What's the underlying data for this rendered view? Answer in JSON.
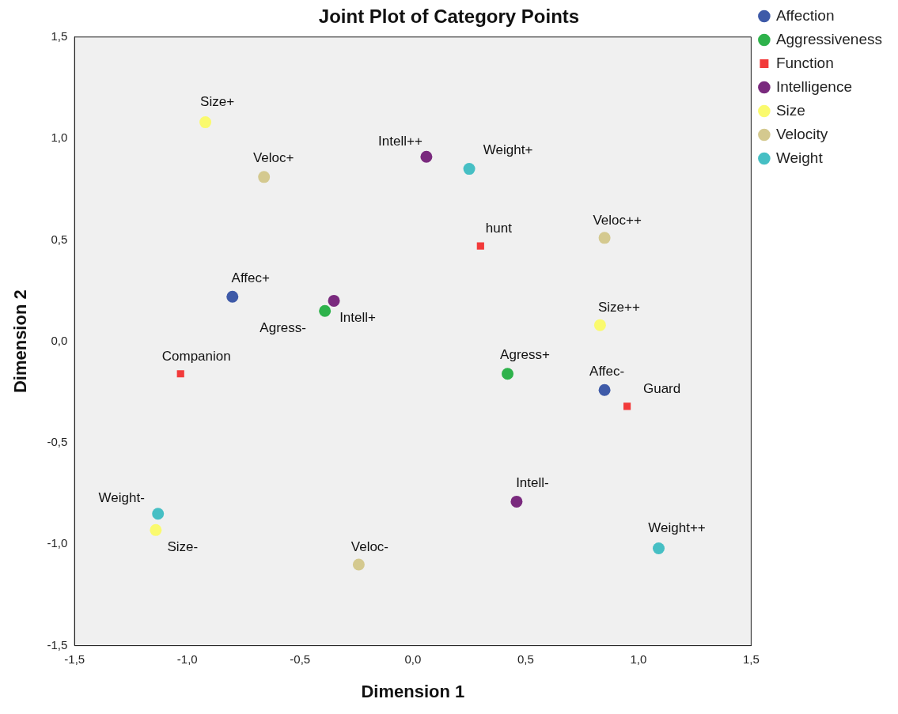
{
  "chart_data": {
    "type": "scatter",
    "title": "Joint Plot of Category Points",
    "xlabel": "Dimension 1",
    "ylabel": "Dimension 2",
    "xlim": [
      -1.5,
      1.5
    ],
    "ylim": [
      -1.5,
      1.5
    ],
    "xticks": [
      {
        "value": -1.5,
        "label": "-1,5"
      },
      {
        "value": -1,
        "label": "-1,0"
      },
      {
        "value": -0.5,
        "label": "-0,5"
      },
      {
        "value": 0,
        "label": "0,0"
      },
      {
        "value": 0.5,
        "label": "0,5"
      },
      {
        "value": 1,
        "label": "1,0"
      },
      {
        "value": 1.5,
        "label": "1,5"
      }
    ],
    "yticks": [
      {
        "value": -1.5,
        "label": "-1,5"
      },
      {
        "value": -1,
        "label": "-1,0"
      },
      {
        "value": -0.5,
        "label": "-0,5"
      },
      {
        "value": 0,
        "label": "0,0"
      },
      {
        "value": 0.5,
        "label": "0,5"
      },
      {
        "value": 1,
        "label": "1,0"
      },
      {
        "value": 1.5,
        "label": "1,5"
      }
    ],
    "grid": false,
    "legend": "top right",
    "marker": "circle",
    "series": [
      {
        "name": "Affection",
        "color": "#3e5aa8",
        "x": [
          -0.8,
          0.85
        ],
        "values": [
          0.22,
          -0.24
        ]
      },
      {
        "name": "Aggressiveness",
        "color": "#2eb24b",
        "x": [
          0.42,
          -0.39
        ],
        "values": [
          -0.16,
          0.15
        ]
      },
      {
        "name": "Function",
        "color": "#f23a3a",
        "marker": "square",
        "x": [
          0.3,
          -1.03,
          0.95
        ],
        "values": [
          0.47,
          -0.16,
          -0.32
        ]
      },
      {
        "name": "Intelligence",
        "color": "#7a2a7e",
        "x": [
          0.06,
          -0.35,
          0.46
        ],
        "values": [
          0.91,
          0.2,
          -0.79
        ]
      },
      {
        "name": "Size",
        "color": "#fafa6e",
        "x": [
          -0.92,
          0.83,
          -1.14
        ],
        "values": [
          1.08,
          0.08,
          -0.93
        ]
      },
      {
        "name": "Velocity",
        "color": "#d4c98f",
        "x": [
          -0.66,
          0.85,
          -0.24
        ],
        "values": [
          0.81,
          0.51,
          -1.1
        ]
      },
      {
        "name": "Weight",
        "color": "#46bfc4",
        "x": [
          0.25,
          -1.13,
          1.09
        ],
        "values": [
          0.85,
          -0.85,
          -1.02
        ]
      }
    ],
    "annotations": [
      {
        "text": "Affec+",
        "x": -0.8,
        "y": 0.22
      },
      {
        "text": "Affec-",
        "x": 0.85,
        "y": -0.24
      },
      {
        "text": "Agress+",
        "x": 0.42,
        "y": -0.16
      },
      {
        "text": "Agress-",
        "x": -0.39,
        "y": 0.15
      },
      {
        "text": "hunt",
        "x": 0.3,
        "y": 0.47
      },
      {
        "text": "Companion",
        "x": -1.03,
        "y": -0.16
      },
      {
        "text": "Guard",
        "x": 0.95,
        "y": -0.32
      },
      {
        "text": "Intell++",
        "x": 0.06,
        "y": 0.91
      },
      {
        "text": "Intell+",
        "x": -0.35,
        "y": 0.2
      },
      {
        "text": "Intell-",
        "x": 0.46,
        "y": -0.79
      },
      {
        "text": "Size+",
        "x": -0.92,
        "y": 1.08
      },
      {
        "text": "Size++",
        "x": 0.83,
        "y": 0.08
      },
      {
        "text": "Size-",
        "x": -1.14,
        "y": -0.93
      },
      {
        "text": "Veloc+",
        "x": -0.66,
        "y": 0.81
      },
      {
        "text": "Veloc++",
        "x": 0.85,
        "y": 0.51
      },
      {
        "text": "Veloc-",
        "x": -0.24,
        "y": -1.1
      },
      {
        "text": "Weight+",
        "x": 0.25,
        "y": 0.85
      },
      {
        "text": "Weight-",
        "x": -1.13,
        "y": -0.85
      },
      {
        "text": "Weight++",
        "x": 1.09,
        "y": -1.02
      }
    ]
  }
}
